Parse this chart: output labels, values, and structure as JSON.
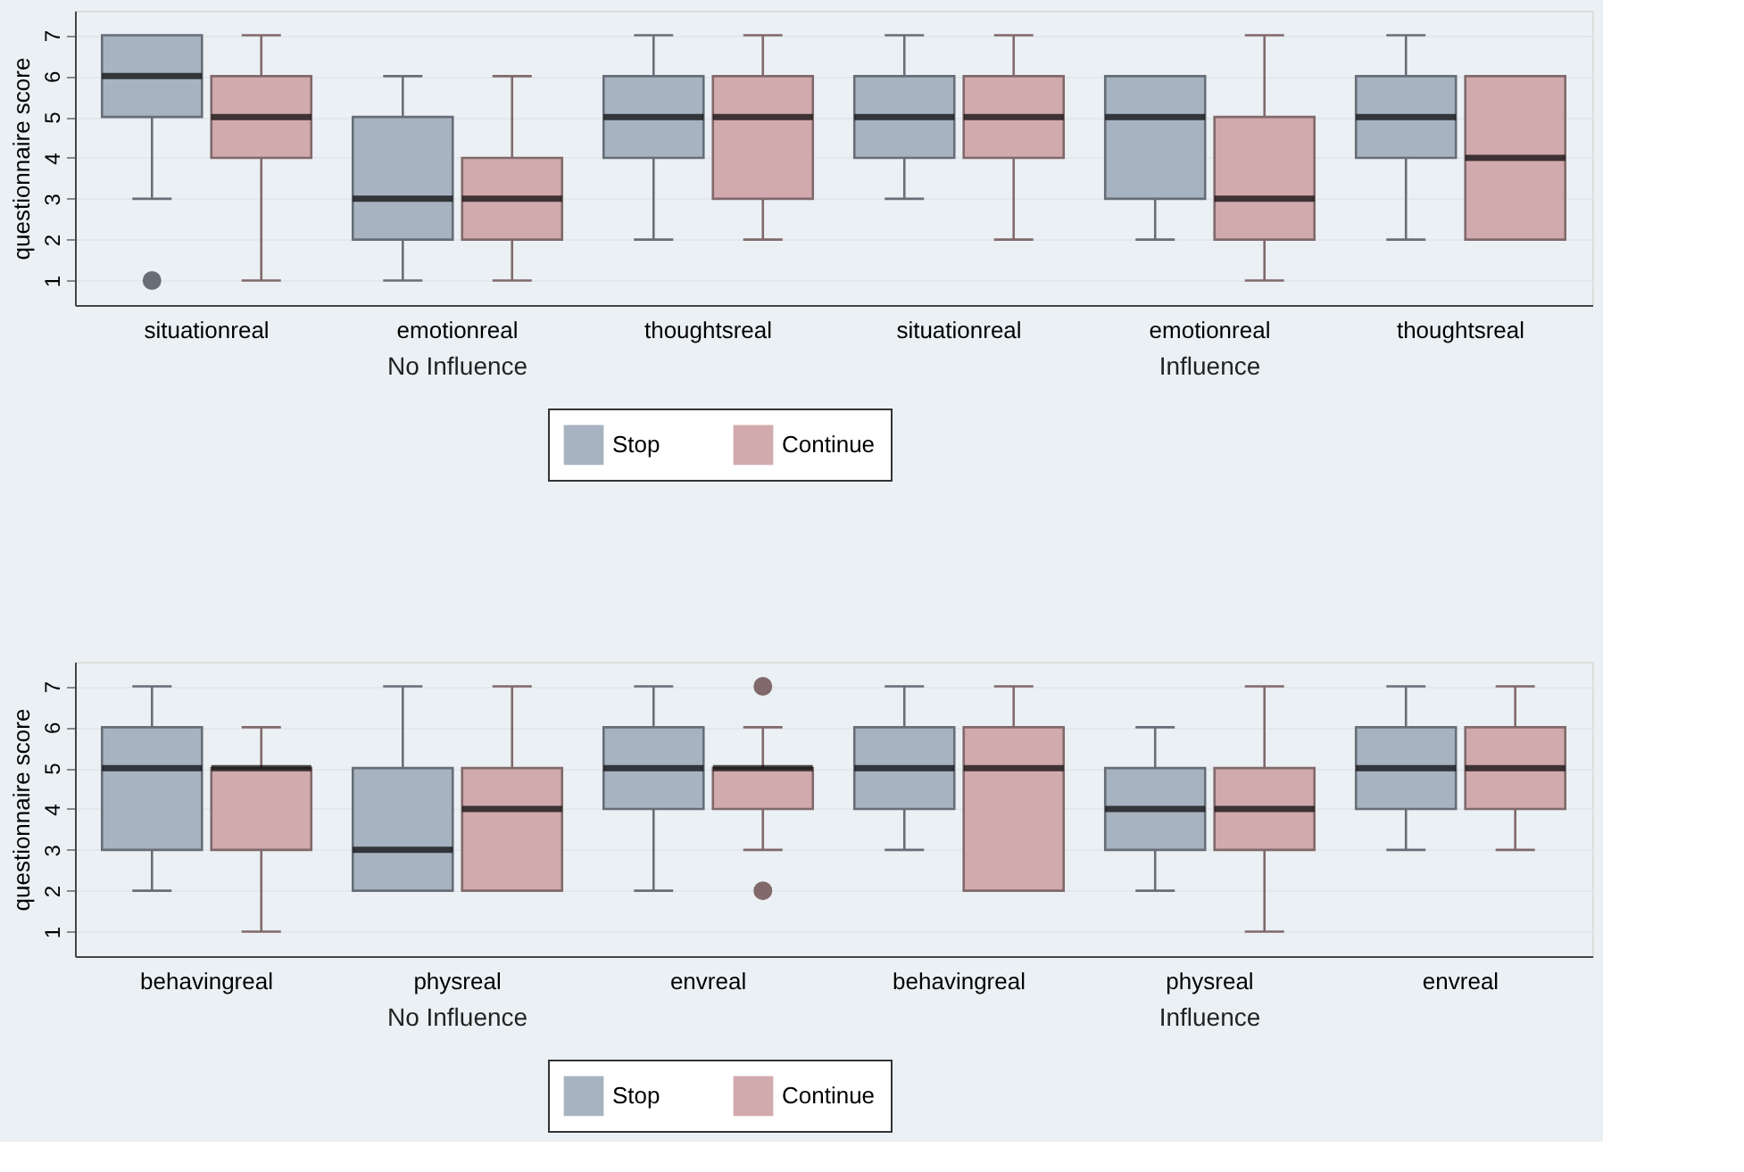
{
  "chart_data": [
    {
      "type": "box",
      "ylabel": "questionnaire score",
      "categories": [
        "situationreal",
        "emotionreal",
        "thoughtsreal",
        "situationreal",
        "emotionreal",
        "thoughtsreal"
      ],
      "annotations": [
        "No Influence",
        "Influence"
      ],
      "ylim": [
        0.4,
        7.6
      ],
      "yticks": [
        1,
        2,
        3,
        4,
        5,
        6,
        7
      ],
      "grid": "y",
      "legend": "bottom",
      "series": [
        {
          "name": "Stop",
          "color": "#a7b3c1",
          "boxes": [
            {
              "low": 3,
              "q1": 5,
              "median": 6,
              "q3": 7,
              "high": 7,
              "outliers": [
                1
              ]
            },
            {
              "low": 1,
              "q1": 2,
              "median": 3,
              "q3": 5,
              "high": 6
            },
            {
              "low": 2,
              "q1": 4,
              "median": 5,
              "q3": 6,
              "high": 7
            },
            {
              "low": 3,
              "q1": 4,
              "median": 5,
              "q3": 6,
              "high": 7
            },
            {
              "low": 2,
              "q1": 3,
              "median": 5,
              "q3": 6,
              "high": 6
            },
            {
              "low": 2,
              "q1": 4,
              "median": 5,
              "q3": 6,
              "high": 7
            }
          ]
        },
        {
          "name": "Continue",
          "color": "#d1aaad",
          "boxes": [
            {
              "low": 1,
              "q1": 4,
              "median": 5,
              "q3": 6,
              "high": 7
            },
            {
              "low": 1,
              "q1": 2,
              "median": 3,
              "q3": 4,
              "high": 6
            },
            {
              "low": 2,
              "q1": 3,
              "median": 5,
              "q3": 6,
              "high": 7
            },
            {
              "low": 2,
              "q1": 4,
              "median": 5,
              "q3": 6,
              "high": 7
            },
            {
              "low": 1,
              "q1": 2,
              "median": 3,
              "q3": 5,
              "high": 7
            },
            {
              "low": 2,
              "q1": 2,
              "median": 4,
              "q3": 6,
              "high": 6
            }
          ]
        }
      ]
    },
    {
      "type": "box",
      "ylabel": "questionnaire score",
      "categories": [
        "behavingreal",
        "physreal",
        "envreal",
        "behavingreal",
        "physreal",
        "envreal"
      ],
      "annotations": [
        "No Influence",
        "Influence"
      ],
      "ylim": [
        0.4,
        7.6
      ],
      "yticks": [
        1,
        2,
        3,
        4,
        5,
        6,
        7
      ],
      "grid": "y",
      "legend": "bottom",
      "series": [
        {
          "name": "Stop",
          "color": "#a7b3c1",
          "boxes": [
            {
              "low": 2,
              "q1": 3,
              "median": 5,
              "q3": 6,
              "high": 7
            },
            {
              "low": 2,
              "q1": 2,
              "median": 3,
              "q3": 5,
              "high": 7
            },
            {
              "low": 2,
              "q1": 4,
              "median": 5,
              "q3": 6,
              "high": 7
            },
            {
              "low": 3,
              "q1": 4,
              "median": 5,
              "q3": 6,
              "high": 7
            },
            {
              "low": 2,
              "q1": 3,
              "median": 4,
              "q3": 5,
              "high": 6
            },
            {
              "low": 3,
              "q1": 4,
              "median": 5,
              "q3": 6,
              "high": 7
            }
          ]
        },
        {
          "name": "Continue",
          "color": "#d1aaad",
          "boxes": [
            {
              "low": 1,
              "q1": 3,
              "median": 5,
              "q3": 5,
              "high": 6
            },
            {
              "low": 2,
              "q1": 2,
              "median": 4,
              "q3": 5,
              "high": 7
            },
            {
              "low": 3,
              "q1": 4,
              "median": 5,
              "q3": 5,
              "high": 6,
              "outliers": [
                7,
                2
              ]
            },
            {
              "low": 2,
              "q1": 2,
              "median": 5,
              "q3": 6,
              "high": 7
            },
            {
              "low": 1,
              "q1": 3,
              "median": 4,
              "q3": 5,
              "high": 7
            },
            {
              "low": 3,
              "q1": 4,
              "median": 5,
              "q3": 6,
              "high": 7
            }
          ]
        }
      ]
    }
  ]
}
